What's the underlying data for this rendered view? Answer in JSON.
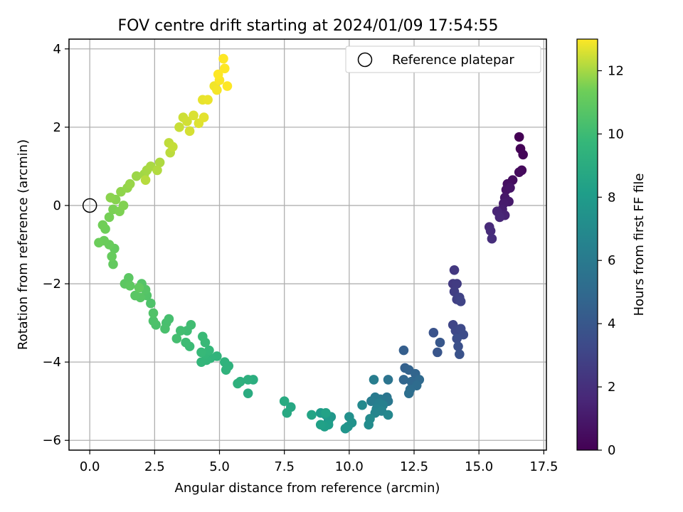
{
  "chart_data": {
    "type": "scatter",
    "title": "FOV centre drift starting at 2024/01/09 17:54:55",
    "xlabel": "Angular distance from reference (arcmin)",
    "ylabel": "Rotation from reference (arcmin)",
    "xlim": [
      -0.8,
      17.6
    ],
    "ylim": [
      -6.25,
      4.25
    ],
    "xticks": [
      0.0,
      2.5,
      5.0,
      7.5,
      10.0,
      12.5,
      15.0,
      17.5
    ],
    "xtick_labels": [
      "0.0",
      "2.5",
      "5.0",
      "7.5",
      "10.0",
      "12.5",
      "15.0",
      "17.5"
    ],
    "yticks": [
      -6,
      -4,
      -2,
      0,
      2,
      4
    ],
    "ytick_labels": [
      "−6",
      "−4",
      "−2",
      "0",
      "2",
      "4"
    ],
    "grid": true,
    "legend_placement": "top-right",
    "legend_entry": "Reference platepar",
    "reference_point": {
      "x": 0,
      "y": 0
    },
    "colorbar": {
      "label": "Hours from first FF file",
      "range": [
        0,
        13
      ],
      "ticks": [
        0,
        2,
        4,
        6,
        8,
        10,
        12
      ],
      "tick_labels": [
        "0",
        "2",
        "4",
        "6",
        "8",
        "10",
        "12"
      ],
      "colormap": "viridis"
    },
    "points": [
      [
        16.55,
        1.75,
        0.0
      ],
      [
        16.6,
        1.45,
        0.1
      ],
      [
        16.7,
        1.3,
        0.2
      ],
      [
        16.65,
        0.9,
        0.3
      ],
      [
        16.55,
        0.85,
        0.4
      ],
      [
        16.3,
        0.65,
        0.5
      ],
      [
        16.1,
        0.55,
        0.6
      ],
      [
        16.05,
        0.4,
        0.7
      ],
      [
        16.2,
        0.45,
        0.8
      ],
      [
        16.0,
        0.2,
        0.9
      ],
      [
        16.15,
        0.1,
        1.0
      ],
      [
        15.95,
        0.05,
        1.1
      ],
      [
        15.9,
        -0.1,
        1.2
      ],
      [
        15.8,
        -0.2,
        1.3
      ],
      [
        16.0,
        -0.25,
        1.4
      ],
      [
        15.7,
        -0.15,
        1.5
      ],
      [
        15.8,
        -0.3,
        1.6
      ],
      [
        15.4,
        -0.55,
        1.7
      ],
      [
        15.45,
        -0.65,
        1.8
      ],
      [
        15.5,
        -0.85,
        1.9
      ],
      [
        14.05,
        -1.65,
        2.4
      ],
      [
        14.0,
        -2.0,
        2.5
      ],
      [
        14.15,
        -2.0,
        2.6
      ],
      [
        14.05,
        -2.2,
        2.7
      ],
      [
        14.15,
        -2.4,
        2.8
      ],
      [
        14.25,
        -2.35,
        2.9
      ],
      [
        14.3,
        -2.45,
        3.0
      ],
      [
        14.0,
        -3.05,
        3.1
      ],
      [
        14.1,
        -3.2,
        3.2
      ],
      [
        14.3,
        -3.15,
        3.3
      ],
      [
        14.4,
        -3.3,
        3.4
      ],
      [
        14.15,
        -3.4,
        3.5
      ],
      [
        14.2,
        -3.6,
        3.6
      ],
      [
        14.25,
        -3.8,
        3.7
      ],
      [
        13.25,
        -3.25,
        3.8
      ],
      [
        13.4,
        -3.75,
        3.9
      ],
      [
        13.5,
        -3.5,
        4.0
      ],
      [
        12.1,
        -3.7,
        4.4
      ],
      [
        12.15,
        -4.15,
        4.5
      ],
      [
        12.3,
        -4.2,
        4.6
      ],
      [
        12.55,
        -4.3,
        4.7
      ],
      [
        12.1,
        -4.45,
        4.8
      ],
      [
        12.4,
        -4.5,
        4.9
      ],
      [
        12.7,
        -4.45,
        5.0
      ],
      [
        12.6,
        -4.6,
        5.1
      ],
      [
        12.35,
        -4.7,
        5.2
      ],
      [
        12.3,
        -4.8,
        5.3
      ],
      [
        11.5,
        -4.45,
        5.6
      ],
      [
        11.45,
        -4.9,
        5.7
      ],
      [
        11.5,
        -5.0,
        5.8
      ],
      [
        11.2,
        -4.95,
        5.9
      ],
      [
        11.0,
        -4.9,
        6.0
      ],
      [
        10.85,
        -5.0,
        6.1
      ],
      [
        10.95,
        -4.45,
        6.2
      ],
      [
        11.15,
        -5.05,
        6.3
      ],
      [
        11.3,
        -5.1,
        6.4
      ],
      [
        11.05,
        -5.2,
        6.5
      ],
      [
        11.25,
        -5.25,
        6.6
      ],
      [
        11.0,
        -5.3,
        6.7
      ],
      [
        11.5,
        -5.35,
        6.8
      ],
      [
        10.5,
        -5.1,
        6.9
      ],
      [
        10.8,
        -5.45,
        7.0
      ],
      [
        10.75,
        -5.6,
        7.1
      ],
      [
        10.0,
        -5.4,
        7.3
      ],
      [
        10.1,
        -5.55,
        7.4
      ],
      [
        9.95,
        -5.65,
        7.5
      ],
      [
        9.85,
        -5.7,
        7.6
      ],
      [
        9.3,
        -5.4,
        7.7
      ],
      [
        9.2,
        -5.5,
        7.8
      ],
      [
        9.1,
        -5.35,
        7.9
      ],
      [
        8.9,
        -5.3,
        8.0
      ],
      [
        9.2,
        -5.6,
        8.1
      ],
      [
        9.05,
        -5.65,
        8.2
      ],
      [
        8.9,
        -5.6,
        8.3
      ],
      [
        9.1,
        -5.3,
        8.4
      ],
      [
        8.55,
        -5.35,
        8.5
      ],
      [
        7.75,
        -5.15,
        8.7
      ],
      [
        7.6,
        -5.3,
        8.8
      ],
      [
        7.5,
        -5.0,
        8.9
      ],
      [
        6.1,
        -4.8,
        9.0
      ],
      [
        6.3,
        -4.45,
        9.1
      ],
      [
        6.1,
        -4.45,
        9.2
      ],
      [
        5.8,
        -4.5,
        9.25
      ],
      [
        5.7,
        -4.55,
        9.3
      ],
      [
        5.35,
        -4.1,
        9.35
      ],
      [
        5.2,
        -4.0,
        9.4
      ],
      [
        5.25,
        -4.2,
        9.45
      ],
      [
        4.9,
        -3.85,
        9.5
      ],
      [
        4.65,
        -3.9,
        9.55
      ],
      [
        4.5,
        -3.95,
        9.6
      ],
      [
        4.3,
        -4.0,
        9.65
      ],
      [
        4.45,
        -3.8,
        9.7
      ],
      [
        4.6,
        -3.7,
        9.75
      ],
      [
        4.3,
        -3.75,
        9.8
      ],
      [
        4.45,
        -3.5,
        9.85
      ],
      [
        4.35,
        -3.35,
        9.9
      ],
      [
        3.85,
        -3.6,
        9.95
      ],
      [
        3.7,
        -3.5,
        10.0
      ],
      [
        3.75,
        -3.2,
        10.05
      ],
      [
        3.9,
        -3.05,
        10.1
      ],
      [
        3.5,
        -3.2,
        10.15
      ],
      [
        3.35,
        -3.4,
        10.2
      ],
      [
        3.05,
        -2.9,
        10.25
      ],
      [
        2.95,
        -3.0,
        10.3
      ],
      [
        2.9,
        -3.15,
        10.35
      ],
      [
        2.55,
        -3.05,
        10.4
      ],
      [
        2.45,
        -2.95,
        10.45
      ],
      [
        2.35,
        -2.5,
        10.5
      ],
      [
        2.45,
        -2.75,
        10.55
      ],
      [
        2.2,
        -2.3,
        10.6
      ],
      [
        2.0,
        -2.0,
        10.65
      ],
      [
        2.15,
        -2.15,
        10.7
      ],
      [
        1.95,
        -2.35,
        10.75
      ],
      [
        1.75,
        -2.3,
        10.8
      ],
      [
        1.5,
        -1.85,
        10.85
      ],
      [
        1.35,
        -2.0,
        10.9
      ],
      [
        1.55,
        -2.05,
        10.95
      ],
      [
        1.9,
        -2.1,
        11.0
      ],
      [
        0.9,
        -1.5,
        11.05
      ],
      [
        0.95,
        -1.1,
        11.1
      ],
      [
        0.85,
        -1.3,
        11.15
      ],
      [
        0.75,
        -1.0,
        11.2
      ],
      [
        0.55,
        -0.9,
        11.25
      ],
      [
        0.35,
        -0.95,
        11.3
      ],
      [
        0.6,
        -0.6,
        11.35
      ],
      [
        0.5,
        -0.5,
        11.4
      ],
      [
        0.75,
        -0.3,
        11.45
      ],
      [
        0.9,
        -0.1,
        11.5
      ],
      [
        1.15,
        -0.15,
        11.55
      ],
      [
        1.3,
        0.0,
        11.6
      ],
      [
        1.0,
        0.15,
        11.65
      ],
      [
        0.8,
        0.2,
        11.7
      ],
      [
        1.2,
        0.35,
        11.75
      ],
      [
        1.45,
        0.45,
        11.8
      ],
      [
        1.55,
        0.55,
        11.85
      ],
      [
        1.8,
        0.75,
        11.9
      ],
      [
        2.1,
        0.8,
        11.95
      ],
      [
        2.2,
        0.9,
        12.0
      ],
      [
        2.35,
        1.0,
        12.05
      ],
      [
        2.7,
        1.1,
        12.1
      ],
      [
        2.6,
        0.9,
        12.15
      ],
      [
        2.15,
        0.65,
        12.2
      ],
      [
        3.1,
        1.35,
        12.25
      ],
      [
        3.05,
        1.6,
        12.3
      ],
      [
        3.2,
        1.5,
        12.35
      ],
      [
        3.45,
        2.0,
        12.4
      ],
      [
        3.6,
        2.25,
        12.45
      ],
      [
        3.75,
        2.15,
        12.5
      ],
      [
        3.85,
        1.9,
        12.55
      ],
      [
        4.0,
        2.3,
        12.6
      ],
      [
        4.2,
        2.1,
        12.65
      ],
      [
        4.4,
        2.25,
        12.7
      ],
      [
        4.35,
        2.7,
        12.75
      ],
      [
        4.55,
        2.7,
        12.8
      ],
      [
        4.8,
        3.05,
        12.85
      ],
      [
        4.9,
        2.95,
        12.9
      ],
      [
        5.0,
        3.2,
        12.95
      ],
      [
        5.3,
        3.05,
        13.0
      ],
      [
        4.95,
        3.35,
        13.0
      ],
      [
        5.2,
        3.5,
        13.0
      ],
      [
        5.15,
        3.75,
        13.0
      ]
    ]
  }
}
